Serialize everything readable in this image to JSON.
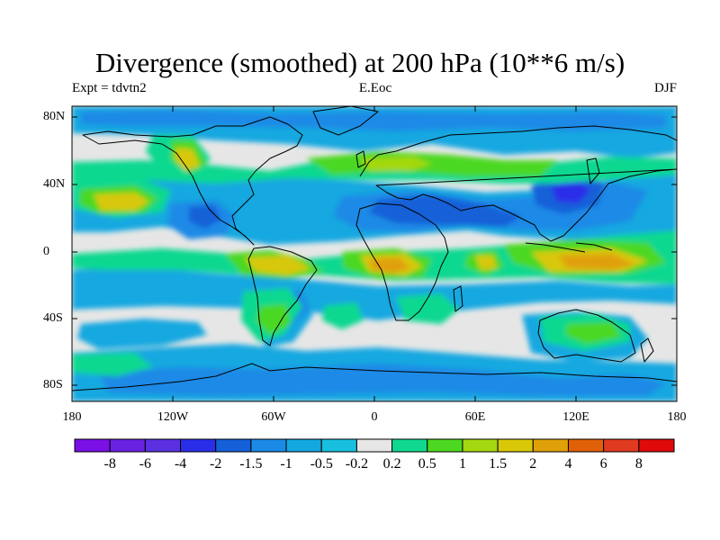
{
  "title": "Divergence (smoothed) at 200 hPa (10**6 m/s)",
  "subtitle_left": "Expt = tdvtn2",
  "subtitle_center": "E.Eoc",
  "subtitle_right": "DJF",
  "lat_labels": [
    "80N",
    "40N",
    "0",
    "40S",
    "80S"
  ],
  "lon_labels": [
    "180",
    "120W",
    "60W",
    "0",
    "60E",
    "120E",
    "180"
  ],
  "colorbar": {
    "colors": [
      "#7a10e6",
      "#6a22e2",
      "#5a30e0",
      "#2a2ee8",
      "#1460d8",
      "#1a8ae6",
      "#14a8e0",
      "#18c0e0",
      "#e6e6e6",
      "#10d890",
      "#4cd820",
      "#a4d810",
      "#d8c808",
      "#e0a008",
      "#e06008",
      "#e03a20",
      "#e00a0a"
    ],
    "labels": [
      "-8",
      "-6",
      "-4",
      "-2",
      "-1.5",
      "-1",
      "-0.5",
      "-0.2",
      "0.2",
      "0.5",
      "1",
      "1.5",
      "2",
      "4",
      "6",
      "8"
    ]
  }
}
